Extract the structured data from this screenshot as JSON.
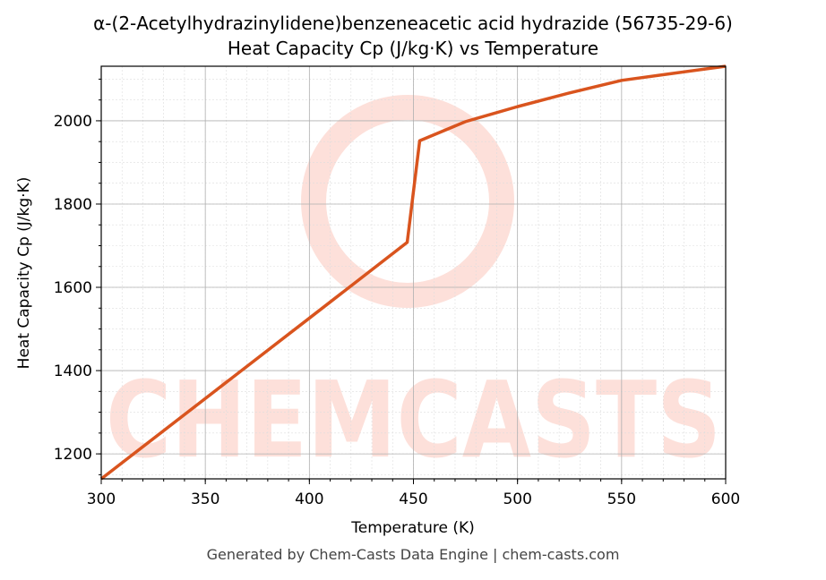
{
  "chart_data": {
    "type": "line",
    "title": "α-(2-Acetylhydrazinylidene)benzeneacetic acid hydrazide (56735-29-6)",
    "subtitle": "Heat Capacity Cp (J/kg·K) vs Temperature",
    "x_label": "Temperature (K)",
    "y_label": "Heat Capacity Cp (J/kg·K)",
    "footer": "Generated by Chem-Casts Data Engine | chem-casts.com",
    "watermark": "CHEMCASTS",
    "x": [
      300,
      350,
      400,
      447,
      453,
      475,
      500,
      525,
      550,
      575,
      600
    ],
    "series": [
      {
        "name": "Cp",
        "color": "#d9541e",
        "values": [
          1140,
          1333,
          1526,
          1708,
          1952,
          1998,
          2034,
          2067,
          2097,
          2114,
          2131
        ]
      }
    ],
    "xlim": [
      300,
      600
    ],
    "xticks": [
      300,
      350,
      400,
      450,
      500,
      550,
      600
    ],
    "ylim": [
      1140,
      2131
    ],
    "yticks": [
      1200,
      1400,
      1600,
      1800,
      2000
    ],
    "grid": true,
    "minor_grid": true
  }
}
